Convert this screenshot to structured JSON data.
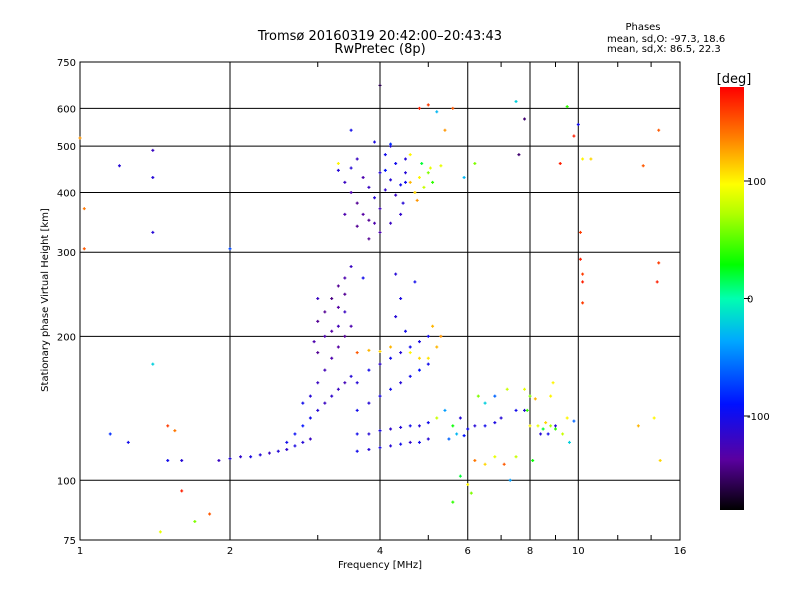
{
  "chart_data": {
    "type": "scatter",
    "title": "Tromsø 20160319 20:42:00–20:43:43",
    "subtitle": "RwPretec (8p)",
    "xlabel": "Frequency [MHz]",
    "ylabel": "Stationary phase Virtual Height [km]",
    "x_scale": "log",
    "y_scale": "log",
    "xlim": [
      1,
      16
    ],
    "ylim": [
      75,
      750
    ],
    "x_ticks": [
      1,
      2,
      4,
      6,
      8,
      10,
      16
    ],
    "x_tick_labels": [
      "1",
      "2",
      "4",
      "6",
      "8",
      "10",
      "16"
    ],
    "y_ticks": [
      75,
      100,
      200,
      300,
      400,
      500,
      600,
      750
    ],
    "y_tick_labels": [
      "75",
      "100",
      "200",
      "300",
      "400",
      "500",
      "600",
      "750"
    ],
    "grid": true,
    "phase_stats": {
      "title": "Phases",
      "o_line": "mean, sd,O: -97.3, 18.6",
      "x_line": "mean, sd,X:  86.5, 22.3"
    },
    "colorbar": {
      "label": "[deg]",
      "range": [
        -180,
        180
      ],
      "ticks": [
        100,
        0,
        -100
      ],
      "tick_labels": [
        "100",
        "0",
        "-100"
      ]
    },
    "points": [
      [
        1.0,
        520,
        130
      ],
      [
        1.02,
        370,
        140
      ],
      [
        1.02,
        305,
        150
      ],
      [
        1.2,
        455,
        -110
      ],
      [
        1.4,
        490,
        -120
      ],
      [
        1.4,
        430,
        -110
      ],
      [
        1.4,
        330,
        -110
      ],
      [
        1.4,
        175,
        -20
      ],
      [
        1.5,
        130,
        160
      ],
      [
        1.55,
        127,
        140
      ],
      [
        1.6,
        95,
        170
      ],
      [
        1.5,
        110,
        -100
      ],
      [
        1.6,
        110,
        -110
      ],
      [
        1.15,
        125,
        -80
      ],
      [
        1.25,
        120,
        -100
      ],
      [
        1.7,
        82,
        60
      ],
      [
        1.45,
        78,
        90
      ],
      [
        2.0,
        305,
        -70
      ],
      [
        1.82,
        85,
        150
      ],
      [
        1.9,
        110,
        -120
      ],
      [
        2.0,
        111,
        -110
      ],
      [
        2.1,
        112,
        -115
      ],
      [
        2.2,
        112,
        -105
      ],
      [
        2.3,
        113,
        -110
      ],
      [
        2.4,
        114,
        -120
      ],
      [
        2.5,
        115,
        -110
      ],
      [
        2.6,
        116,
        -115
      ],
      [
        2.7,
        118,
        -105
      ],
      [
        2.8,
        120,
        -110
      ],
      [
        2.9,
        122,
        -120
      ],
      [
        2.6,
        120,
        -100
      ],
      [
        2.7,
        125,
        -95
      ],
      [
        2.8,
        130,
        -90
      ],
      [
        2.9,
        135,
        -100
      ],
      [
        3.0,
        140,
        -110
      ],
      [
        3.1,
        145,
        -120
      ],
      [
        3.2,
        150,
        -115
      ],
      [
        3.3,
        155,
        -120
      ],
      [
        3.4,
        160,
        -125
      ],
      [
        3.5,
        165,
        -110
      ],
      [
        2.8,
        145,
        -100
      ],
      [
        2.9,
        150,
        -110
      ],
      [
        3.0,
        160,
        -120
      ],
      [
        3.1,
        170,
        -125
      ],
      [
        3.2,
        180,
        -130
      ],
      [
        3.3,
        190,
        -135
      ],
      [
        3.4,
        200,
        -140
      ],
      [
        3.5,
        210,
        -130
      ],
      [
        3.0,
        215,
        -140
      ],
      [
        3.1,
        225,
        -140
      ],
      [
        3.2,
        240,
        -145
      ],
      [
        3.3,
        255,
        -140
      ],
      [
        3.4,
        265,
        -130
      ],
      [
        3.5,
        280,
        -120
      ],
      [
        3.3,
        230,
        -135
      ],
      [
        3.4,
        245,
        -140
      ],
      [
        3.0,
        240,
        -120
      ],
      [
        2.95,
        195,
        -130
      ],
      [
        3.0,
        185,
        -140
      ],
      [
        3.1,
        200,
        -130
      ],
      [
        3.2,
        205,
        -135
      ],
      [
        3.3,
        210,
        -125
      ],
      [
        3.4,
        225,
        -120
      ],
      [
        3.6,
        125,
        -100
      ],
      [
        3.8,
        125,
        -110
      ],
      [
        4.0,
        127,
        -105
      ],
      [
        4.2,
        128,
        -115
      ],
      [
        4.4,
        129,
        -110
      ],
      [
        4.6,
        130,
        -100
      ],
      [
        4.8,
        130,
        -110
      ],
      [
        5.0,
        132,
        -100
      ],
      [
        3.6,
        115,
        -100
      ],
      [
        3.8,
        116,
        -110
      ],
      [
        4.0,
        117,
        -105
      ],
      [
        4.2,
        118,
        -110
      ],
      [
        4.4,
        119,
        -100
      ],
      [
        4.6,
        120,
        -115
      ],
      [
        4.8,
        120,
        -100
      ],
      [
        5.0,
        122,
        -110
      ],
      [
        3.6,
        140,
        -100
      ],
      [
        3.8,
        145,
        -110
      ],
      [
        4.0,
        150,
        -105
      ],
      [
        4.2,
        155,
        -100
      ],
      [
        4.4,
        160,
        -110
      ],
      [
        4.6,
        165,
        -100
      ],
      [
        4.8,
        170,
        -90
      ],
      [
        5.0,
        175,
        -100
      ],
      [
        3.6,
        160,
        -110
      ],
      [
        3.8,
        170,
        -100
      ],
      [
        4.0,
        175,
        -115
      ],
      [
        4.2,
        180,
        -100
      ],
      [
        4.4,
        185,
        -110
      ],
      [
        4.6,
        190,
        -100
      ],
      [
        4.8,
        195,
        -105
      ],
      [
        5.0,
        200,
        -100
      ],
      [
        3.6,
        185,
        150
      ],
      [
        3.8,
        187,
        120
      ],
      [
        4.0,
        186,
        110
      ],
      [
        4.2,
        190,
        120
      ],
      [
        4.6,
        185,
        100
      ],
      [
        4.8,
        180,
        110
      ],
      [
        5.0,
        180,
        105
      ],
      [
        5.2,
        190,
        120
      ],
      [
        5.3,
        200,
        130
      ],
      [
        5.1,
        210,
        120
      ],
      [
        4.5,
        205,
        -100
      ],
      [
        4.3,
        220,
        -110
      ],
      [
        4.4,
        240,
        -105
      ],
      [
        4.7,
        260,
        -100
      ],
      [
        4.3,
        270,
        -110
      ],
      [
        3.7,
        265,
        -100
      ],
      [
        5.4,
        140,
        -40
      ],
      [
        5.2,
        135,
        80
      ],
      [
        5.6,
        130,
        30
      ],
      [
        5.8,
        135,
        -110
      ],
      [
        5.5,
        122,
        -60
      ],
      [
        5.7,
        125,
        -30
      ],
      [
        5.9,
        124,
        -90
      ],
      [
        6.0,
        128,
        -100
      ],
      [
        6.2,
        130,
        -110
      ],
      [
        6.5,
        130,
        -100
      ],
      [
        6.8,
        132,
        -105
      ],
      [
        7.0,
        135,
        -110
      ],
      [
        6.3,
        150,
        60
      ],
      [
        6.5,
        145,
        -20
      ],
      [
        6.8,
        150,
        -60
      ],
      [
        7.2,
        155,
        80
      ],
      [
        7.5,
        140,
        -100
      ],
      [
        7.8,
        140,
        -110
      ],
      [
        6.2,
        110,
        140
      ],
      [
        6.5,
        108,
        110
      ],
      [
        6.8,
        112,
        90
      ],
      [
        7.1,
        108,
        150
      ],
      [
        5.8,
        102,
        20
      ],
      [
        6.0,
        98,
        100
      ],
      [
        6.1,
        94,
        60
      ],
      [
        5.6,
        90,
        40
      ],
      [
        7.8,
        155,
        90
      ],
      [
        8.0,
        150,
        60
      ],
      [
        8.2,
        148,
        120
      ],
      [
        7.9,
        140,
        40
      ],
      [
        8.0,
        130,
        100
      ],
      [
        8.3,
        130,
        90
      ],
      [
        8.5,
        128,
        20
      ],
      [
        8.6,
        132,
        110
      ],
      [
        8.8,
        130,
        70
      ],
      [
        9.0,
        128,
        40
      ],
      [
        9.3,
        125,
        80
      ],
      [
        8.4,
        125,
        -110
      ],
      [
        8.7,
        125,
        -100
      ],
      [
        9.0,
        130,
        -110
      ],
      [
        8.8,
        150,
        100
      ],
      [
        9.5,
        135,
        100
      ],
      [
        9.8,
        133,
        -60
      ],
      [
        8.9,
        160,
        100
      ],
      [
        7.5,
        112,
        80
      ],
      [
        8.1,
        110,
        30
      ],
      [
        9.6,
        120,
        -20
      ],
      [
        7.3,
        100,
        -40
      ],
      [
        3.4,
        420,
        -120
      ],
      [
        3.5,
        400,
        -130
      ],
      [
        3.6,
        380,
        -140
      ],
      [
        3.7,
        360,
        -135
      ],
      [
        3.8,
        410,
        -120
      ],
      [
        3.9,
        390,
        -110
      ],
      [
        4.0,
        370,
        -125
      ],
      [
        4.1,
        405,
        -115
      ],
      [
        4.2,
        425,
        -110
      ],
      [
        4.3,
        395,
        -120
      ],
      [
        4.4,
        415,
        -100
      ],
      [
        4.5,
        440,
        -110
      ],
      [
        3.5,
        450,
        -110
      ],
      [
        3.6,
        470,
        -120
      ],
      [
        3.7,
        430,
        -130
      ],
      [
        3.8,
        350,
        -140
      ],
      [
        3.9,
        345,
        -130
      ],
      [
        4.0,
        440,
        -110
      ],
      [
        4.1,
        480,
        -100
      ],
      [
        4.2,
        500,
        -110
      ],
      [
        4.3,
        460,
        -100
      ],
      [
        4.4,
        360,
        -115
      ],
      [
        3.5,
        540,
        -100
      ],
      [
        3.9,
        510,
        -105
      ],
      [
        4.2,
        505,
        -80
      ],
      [
        4.5,
        470,
        -110
      ],
      [
        3.3,
        445,
        -110
      ],
      [
        3.4,
        360,
        -130
      ],
      [
        3.6,
        340,
        -140
      ],
      [
        3.8,
        320,
        -140
      ],
      [
        4.0,
        330,
        -130
      ],
      [
        4.2,
        345,
        -120
      ],
      [
        4.6,
        420,
        120
      ],
      [
        4.7,
        400,
        110
      ],
      [
        4.8,
        430,
        100
      ],
      [
        4.9,
        410,
        80
      ],
      [
        5.0,
        440,
        60
      ],
      [
        5.1,
        420,
        40
      ],
      [
        4.75,
        385,
        130
      ],
      [
        4.85,
        460,
        20
      ],
      [
        5.05,
        450,
        90
      ],
      [
        3.3,
        460,
        100
      ],
      [
        4.6,
        480,
        100
      ],
      [
        4.1,
        445,
        -90
      ],
      [
        4.5,
        420,
        -100
      ],
      [
        4.45,
        380,
        -110
      ],
      [
        4.0,
        670,
        -160
      ],
      [
        4.8,
        600,
        170
      ],
      [
        5.0,
        610,
        160
      ],
      [
        5.2,
        590,
        -30
      ],
      [
        5.4,
        540,
        130
      ],
      [
        5.6,
        600,
        150
      ],
      [
        7.5,
        620,
        -20
      ],
      [
        7.8,
        570,
        -150
      ],
      [
        7.6,
        480,
        -150
      ],
      [
        9.5,
        605,
        40
      ],
      [
        10.0,
        555,
        -100
      ],
      [
        9.8,
        525,
        170
      ],
      [
        10.6,
        470,
        110
      ],
      [
        13.5,
        455,
        150
      ],
      [
        14.5,
        540,
        150
      ],
      [
        9.2,
        460,
        170
      ],
      [
        5.3,
        455,
        90
      ],
      [
        5.9,
        430,
        -30
      ],
      [
        6.2,
        460,
        60
      ],
      [
        10.1,
        330,
        160
      ],
      [
        10.1,
        290,
        170
      ],
      [
        10.2,
        270,
        160
      ],
      [
        10.2,
        260,
        170
      ],
      [
        10.2,
        235,
        160
      ],
      [
        14.4,
        260,
        170
      ],
      [
        14.5,
        285,
        160
      ],
      [
        14.6,
        110,
        110
      ],
      [
        14.2,
        135,
        100
      ],
      [
        13.2,
        130,
        120
      ],
      [
        10.2,
        470,
        100
      ]
    ]
  }
}
